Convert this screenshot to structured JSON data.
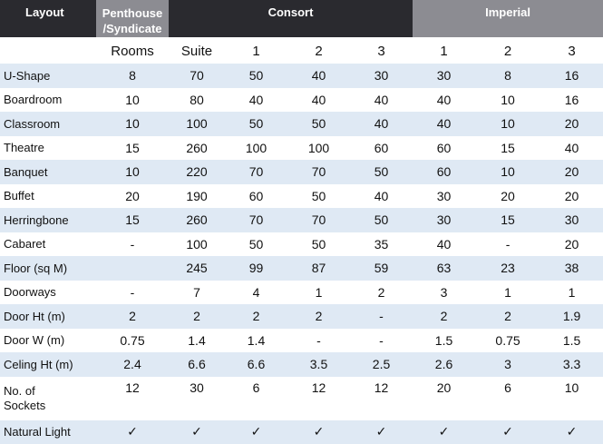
{
  "headers": {
    "layout": "Layout",
    "penthouse_line1": "Penthouse",
    "penthouse_line2": "/Syndicate",
    "consort": "Consort",
    "imperial": "Imperial"
  },
  "subheaders": [
    "",
    "Rooms",
    "Suite",
    "1",
    "2",
    "3",
    "1",
    "2",
    "3"
  ],
  "rows": [
    {
      "label": "U-Shape",
      "values": [
        "8",
        "70",
        "50",
        "40",
        "30",
        "30",
        "8",
        "16"
      ]
    },
    {
      "label": "Boardroom",
      "values": [
        "10",
        "80",
        "40",
        "40",
        "40",
        "40",
        "10",
        "16"
      ]
    },
    {
      "label": "Classroom",
      "values": [
        "10",
        "100",
        "50",
        "50",
        "40",
        "40",
        "10",
        "20"
      ]
    },
    {
      "label": "Theatre",
      "values": [
        "15",
        "260",
        "100",
        "100",
        "60",
        "60",
        "15",
        "40"
      ]
    },
    {
      "label": "Banquet",
      "values": [
        "10",
        "220",
        "70",
        "70",
        "50",
        "60",
        "10",
        "20"
      ]
    },
    {
      "label": "Buffet",
      "values": [
        "20",
        "190",
        "60",
        "50",
        "40",
        "30",
        "20",
        "20"
      ]
    },
    {
      "label": "Herringbone",
      "values": [
        "15",
        "260",
        "70",
        "70",
        "50",
        "30",
        "15",
        "30"
      ]
    },
    {
      "label": "Cabaret",
      "values": [
        "-",
        "100",
        "50",
        "50",
        "35",
        "40",
        "-",
        "20"
      ]
    },
    {
      "label": "Floor (sq M)",
      "values": [
        "",
        "245",
        "99",
        "87",
        "59",
        "63",
        "23",
        "38"
      ]
    },
    {
      "label": "Doorways",
      "values": [
        "-",
        "7",
        "4",
        "1",
        "2",
        "3",
        "1",
        "1"
      ]
    },
    {
      "label": "Door Ht (m)",
      "values": [
        "2",
        "2",
        "2",
        "2",
        "-",
        "2",
        "2",
        "1.9"
      ]
    },
    {
      "label": "Door W (m)",
      "values": [
        "0.75",
        "1.4",
        "1.4",
        "-",
        "-",
        "1.5",
        "0.75",
        "1.5"
      ]
    },
    {
      "label": "Celing Ht (m)",
      "values": [
        "2.4",
        "6.6",
        "6.6",
        "3.5",
        "2.5",
        "2.6",
        "3",
        "3.3"
      ]
    },
    {
      "label_line1": "No. of",
      "label_line2": "Sockets",
      "values": [
        "12",
        "30",
        "6",
        "12",
        "12",
        "20",
        "6",
        "10"
      ]
    },
    {
      "label": "Natural Light",
      "values": [
        "✓",
        "✓",
        "✓",
        "✓",
        "✓",
        "✓",
        "✓",
        "✓"
      ]
    }
  ],
  "colors": {
    "dark_header": "#2a2a2f",
    "grey_header": "#8c8c92",
    "row_stripe": "#dfe9f4"
  }
}
